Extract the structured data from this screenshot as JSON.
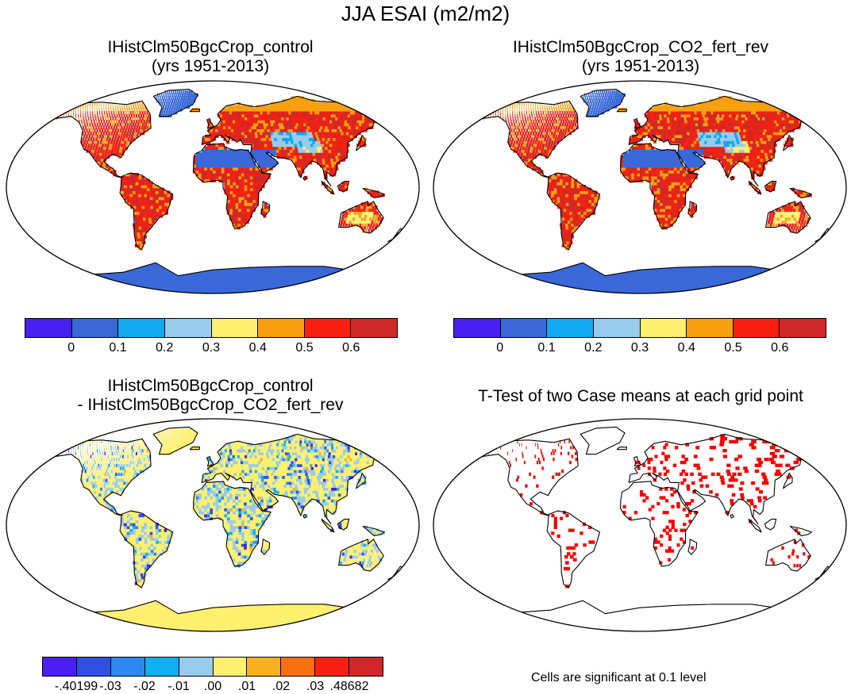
{
  "figure_title": "JJA ESAI (m2/m2)",
  "panels": [
    {
      "title_line1": "IHistClm50BgcCrop_control",
      "title_line2": "(yrs 1951-2013)"
    },
    {
      "title_line1": "IHistClm50BgcCrop_CO2_fert_rev",
      "title_line2": "(yrs 1951-2013)"
    },
    {
      "title_line1": "IHistClm50BgcCrop_control",
      "title_line2": "- IHistClm50BgcCrop_CO2_fert_rev"
    },
    {
      "title_line1": "T-Test of two Case means at each grid point",
      "title_line2": ""
    }
  ],
  "colorbar_top": {
    "colors": [
      "#4a20f0",
      "#3a68d8",
      "#10a8f0",
      "#98ccec",
      "#fff070",
      "#f8a010",
      "#f82010",
      "#d02828"
    ],
    "labels": [
      "0",
      "0.1",
      "0.2",
      "0.3",
      "0.4",
      "0.5",
      "0.6"
    ]
  },
  "colorbar_diff": {
    "colors": [
      "#4a20f0",
      "#3050e0",
      "#2c88f0",
      "#10b0f0",
      "#98ccec",
      "#fff070",
      "#f8b020",
      "#f87010",
      "#f82010",
      "#d02828"
    ],
    "labels": [
      "-.40199",
      "-.03",
      "-.02",
      "-.01",
      ".00",
      ".01",
      ".02",
      ".03",
      ".48682"
    ]
  },
  "significance_note": "Cells are significant at 0.1 level"
}
